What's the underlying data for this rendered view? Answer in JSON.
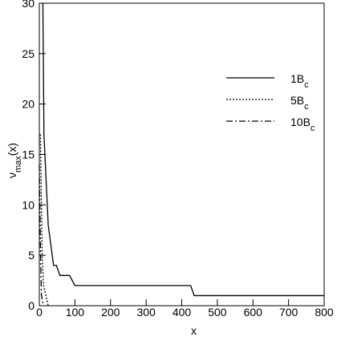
{
  "chart_data": {
    "type": "line",
    "x_label": "x",
    "y_label": "νmax(x)",
    "xlim": [
      0,
      800
    ],
    "ylim": [
      0,
      30
    ],
    "xticks": [
      0,
      100,
      200,
      300,
      400,
      500,
      600,
      700,
      800
    ],
    "yticks": [
      0,
      5,
      10,
      15,
      20,
      25,
      30
    ],
    "legend": "upper right",
    "series": [
      {
        "name": "1Bc",
        "color": "#000000",
        "linestyle": "solid",
        "x": [
          10,
          13,
          25,
          40,
          48,
          58,
          85,
          100,
          425,
          435,
          800
        ],
        "values": [
          30,
          17,
          8,
          4,
          4,
          3,
          3,
          2,
          2,
          1,
          1
        ]
      },
      {
        "name": "5Bc",
        "color": "#000000",
        "linestyle": "dotted",
        "x": [
          3,
          8,
          12,
          25
        ],
        "values": [
          17,
          5,
          2,
          0
        ]
      },
      {
        "name": "10Bc",
        "color": "#000000",
        "linestyle": "dashdot",
        "x": [
          0,
          3,
          6,
          12
        ],
        "values": [
          14,
          6,
          1,
          0
        ]
      }
    ]
  }
}
